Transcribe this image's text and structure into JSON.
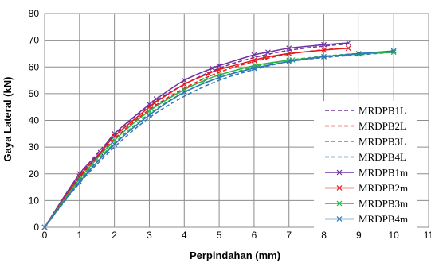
{
  "chart_data": {
    "type": "line",
    "xlabel": "Perpindahan (mm)",
    "ylabel": "Gaya Lateral (kN)",
    "xlim": [
      0,
      11
    ],
    "ylim": [
      0,
      80
    ],
    "xticks": [
      "0",
      "1",
      "2",
      "3",
      "4",
      "5",
      "6",
      "7",
      "8",
      "9",
      "10",
      "11"
    ],
    "yticks": [
      "0",
      "10",
      "20",
      "30",
      "40",
      "50",
      "60",
      "70",
      "80"
    ],
    "grid": true,
    "legend_position": "right",
    "series": [
      {
        "name": "MRDPB1L",
        "color": "#7030a0",
        "dashed": true,
        "marker": "none",
        "x": [
          0,
          1,
          2,
          3,
          4,
          5,
          6,
          7,
          8,
          8.6
        ],
        "y": [
          0,
          19.5,
          34.5,
          45.5,
          53.5,
          59.5,
          63.5,
          66.2,
          67.8,
          68.5
        ]
      },
      {
        "name": "MRDPB2L",
        "color": "#e31a1c",
        "dashed": true,
        "marker": "none",
        "x": [
          0,
          1,
          2,
          3,
          4,
          5,
          6,
          7,
          8,
          8.7
        ],
        "y": [
          0,
          18.5,
          33,
          44,
          52,
          58,
          62,
          64.8,
          66.4,
          67
        ]
      },
      {
        "name": "MRDPB3L",
        "color": "#27b34a",
        "dashed": true,
        "marker": "none",
        "x": [
          0,
          1,
          2,
          3,
          4,
          5,
          6,
          7,
          8,
          9,
          10
        ],
        "y": [
          0,
          17.5,
          31.5,
          42.5,
          50.5,
          56,
          60,
          62.5,
          64,
          65,
          65.5
        ]
      },
      {
        "name": "MRDPB4L",
        "color": "#2e75b6",
        "dashed": true,
        "marker": "none",
        "x": [
          0,
          1,
          2,
          3,
          4,
          5,
          6,
          7,
          8,
          9,
          10
        ],
        "y": [
          0,
          16.5,
          30,
          41,
          49,
          55,
          59,
          62,
          63.5,
          64.5,
          65.5
        ]
      },
      {
        "name": "MRDPB1m",
        "color": "#7030a0",
        "dashed": false,
        "marker": "x",
        "x": [
          0,
          1,
          1.6,
          2,
          3,
          3.2,
          4,
          4.8,
          5,
          6,
          6.4,
          7,
          8,
          8.7
        ],
        "y": [
          0,
          20,
          28,
          35,
          46,
          48,
          55,
          59.5,
          60.5,
          64.5,
          65.5,
          67,
          68.3,
          69
        ]
      },
      {
        "name": "MRDPB2m",
        "color": "#e31a1c",
        "dashed": false,
        "marker": "x",
        "x": [
          0,
          1,
          1.55,
          2,
          3,
          3.15,
          4,
          4.7,
          5,
          6,
          6.3,
          7,
          8,
          8.7
        ],
        "y": [
          0,
          19,
          27,
          34,
          45,
          46.5,
          53.5,
          57.5,
          59,
          62.5,
          63.5,
          65,
          66.3,
          67
        ]
      },
      {
        "name": "MRDPB3m",
        "color": "#27b34a",
        "dashed": false,
        "marker": "x",
        "x": [
          0,
          1,
          2,
          3,
          4,
          4.6,
          5,
          6,
          7,
          7.1,
          8,
          9,
          10
        ],
        "y": [
          0,
          18,
          32.5,
          43.5,
          51.5,
          55,
          57,
          60.5,
          62.5,
          62.6,
          63.8,
          64.8,
          65.5
        ]
      },
      {
        "name": "MRDPB4m",
        "color": "#2e75b6",
        "dashed": false,
        "marker": "x",
        "x": [
          0,
          1,
          2,
          3,
          4,
          5,
          6,
          7,
          8,
          9,
          10
        ],
        "y": [
          0,
          17,
          31,
          42,
          50.5,
          56,
          59.5,
          62,
          63.8,
          65,
          66
        ]
      }
    ]
  }
}
